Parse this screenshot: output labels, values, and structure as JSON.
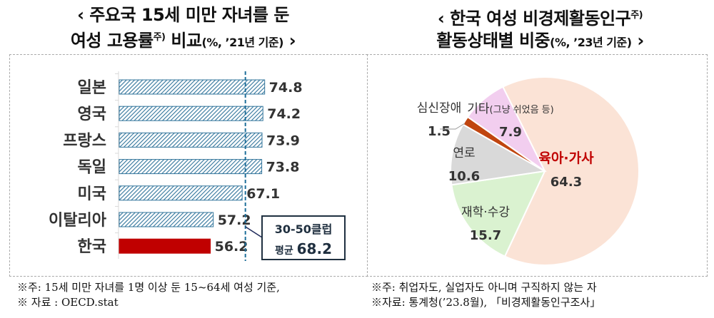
{
  "left_title": {
    "line1": "‹ 주요국 15세 미만 자녀를 둔",
    "line2_main": "여성 고용률",
    "line2_sup": "주)",
    "line2_tail": " 비교",
    "line2_small": "(%, ’21년 기준)",
    "line2_end": " ›"
  },
  "right_title": {
    "line1_main": "‹ 한국 여성 비경제활동인구",
    "line1_sup": "주)",
    "line2_main": "활동상태별 비중",
    "line2_small": "(%, ’23년 기준)",
    "line2_end": " ›"
  },
  "chart_data": [
    {
      "type": "bar",
      "orientation": "horizontal",
      "categories": [
        "일본",
        "영국",
        "프랑스",
        "독일",
        "미국",
        "이탈리아",
        "한국"
      ],
      "values": [
        74.8,
        74.2,
        73.9,
        73.8,
        67.1,
        57.2,
        56.2
      ],
      "data_labels": [
        "74.8",
        "74.2",
        "73.9",
        "73.8",
        "67.1",
        "57.2",
        "56.2"
      ],
      "highlight": "한국",
      "xlim": [
        25,
        80
      ],
      "reference_line": {
        "value": 68.2,
        "label_line1": "30-50클럽",
        "label_line2_prefix": "평균 ",
        "label_line2_value": "68.2"
      },
      "colors": {
        "bar": "#31749b",
        "highlight": "#c00000",
        "avg": "#1f6f9a"
      }
    },
    {
      "type": "pie",
      "slices": [
        {
          "label": "육아·가사",
          "value": 64.3,
          "display": "64.3",
          "color": "#fbe3d6",
          "label_color": "#c00000"
        },
        {
          "label": "재학·수강",
          "value": 15.7,
          "display": "15.7",
          "color": "#daf2d0",
          "label_color": "#333333"
        },
        {
          "label": "연로",
          "value": 10.6,
          "display": "10.6",
          "color": "#d9d9d9",
          "label_color": "#333333"
        },
        {
          "label": "심신장애",
          "value": 1.5,
          "display": "1.5",
          "color": "#c0450f",
          "label_color": "#333333"
        },
        {
          "label": "기타",
          "label_suffix": "(그냥 쉬었음 등)",
          "value": 7.9,
          "display": "7.9",
          "color": "#f2ceef",
          "label_color": "#333333"
        }
      ]
    }
  ],
  "notes": {
    "left_note": "※주: 15세 미만 자녀를 1명 이상 둔 15~64세 여성 기준,",
    "left_source": "※ 자료 : OECD.stat",
    "right_note": "※주: 취업자도, 실업자도 아니며 구직하지 않는 자",
    "right_source": "※자료: 통계청(’23.8월), 「비경제활동인구조사」"
  }
}
